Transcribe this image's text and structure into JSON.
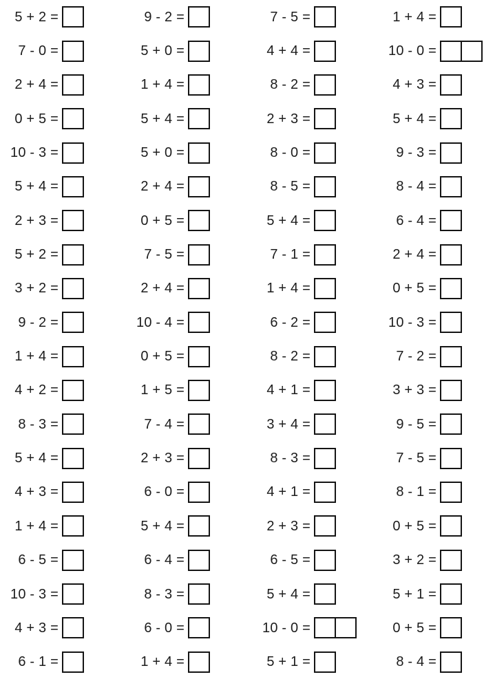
{
  "page": {
    "background_color": "#ffffff",
    "text_color": "#1c1c1c",
    "box_border_color": "#141414",
    "description": "Printable math worksheet: addition and subtraction facts with empty answer boxes",
    "columns": 4,
    "rows_count": 20,
    "answer_boxes_empty": true
  },
  "worksheet": {
    "rows": [
      [
        {
          "label": "5 + 2 =",
          "boxes": 1
        },
        {
          "label": "9 - 2 =",
          "boxes": 1
        },
        {
          "label": "7 - 5 =",
          "boxes": 1
        },
        {
          "label": "1 + 4 =",
          "boxes": 1
        }
      ],
      [
        {
          "label": "7 - 0 =",
          "boxes": 1
        },
        {
          "label": "5 + 0 =",
          "boxes": 1
        },
        {
          "label": "4 + 4 =",
          "boxes": 1
        },
        {
          "label": "10 - 0 =",
          "boxes": 2
        }
      ],
      [
        {
          "label": "2 + 4 =",
          "boxes": 1
        },
        {
          "label": "1 + 4 =",
          "boxes": 1
        },
        {
          "label": "8 - 2 =",
          "boxes": 1
        },
        {
          "label": "4 + 3 =",
          "boxes": 1
        }
      ],
      [
        {
          "label": "0 + 5 =",
          "boxes": 1
        },
        {
          "label": "5 + 4 =",
          "boxes": 1
        },
        {
          "label": "2 + 3 =",
          "boxes": 1
        },
        {
          "label": "5 + 4 =",
          "boxes": 1
        }
      ],
      [
        {
          "label": "10 - 3 =",
          "boxes": 1
        },
        {
          "label": "5 + 0 =",
          "boxes": 1
        },
        {
          "label": "8 - 0 =",
          "boxes": 1
        },
        {
          "label": "9 - 3 =",
          "boxes": 1
        }
      ],
      [
        {
          "label": "5 + 4 =",
          "boxes": 1
        },
        {
          "label": "2 + 4 =",
          "boxes": 1
        },
        {
          "label": "8 - 5 =",
          "boxes": 1
        },
        {
          "label": "8 - 4 =",
          "boxes": 1
        }
      ],
      [
        {
          "label": "2 + 3 =",
          "boxes": 1
        },
        {
          "label": "0 + 5 =",
          "boxes": 1
        },
        {
          "label": "5 + 4 =",
          "boxes": 1
        },
        {
          "label": "6 - 4 =",
          "boxes": 1
        }
      ],
      [
        {
          "label": "5 + 2 =",
          "boxes": 1
        },
        {
          "label": "7 - 5 =",
          "boxes": 1
        },
        {
          "label": "7 - 1 =",
          "boxes": 1
        },
        {
          "label": "2 + 4 =",
          "boxes": 1
        }
      ],
      [
        {
          "label": "3 + 2 =",
          "boxes": 1
        },
        {
          "label": "2 + 4 =",
          "boxes": 1
        },
        {
          "label": "1 + 4 =",
          "boxes": 1
        },
        {
          "label": "0 + 5 =",
          "boxes": 1
        }
      ],
      [
        {
          "label": "9 - 2 =",
          "boxes": 1
        },
        {
          "label": "10 - 4 =",
          "boxes": 1
        },
        {
          "label": "6 - 2 =",
          "boxes": 1
        },
        {
          "label": "10 - 3 =",
          "boxes": 1
        }
      ],
      [
        {
          "label": "1 + 4 =",
          "boxes": 1
        },
        {
          "label": "0 + 5 =",
          "boxes": 1
        },
        {
          "label": "8 - 2 =",
          "boxes": 1
        },
        {
          "label": "7 - 2 =",
          "boxes": 1
        }
      ],
      [
        {
          "label": "4 + 2 =",
          "boxes": 1
        },
        {
          "label": "1 + 5 =",
          "boxes": 1
        },
        {
          "label": "4 + 1 =",
          "boxes": 1
        },
        {
          "label": "3 + 3 =",
          "boxes": 1
        }
      ],
      [
        {
          "label": "8 - 3 =",
          "boxes": 1
        },
        {
          "label": "7 - 4 =",
          "boxes": 1
        },
        {
          "label": "3 + 4 =",
          "boxes": 1
        },
        {
          "label": "9 - 5 =",
          "boxes": 1
        }
      ],
      [
        {
          "label": "5 + 4 =",
          "boxes": 1
        },
        {
          "label": "2 + 3 =",
          "boxes": 1
        },
        {
          "label": "8 - 3 =",
          "boxes": 1
        },
        {
          "label": "7 - 5 =",
          "boxes": 1
        }
      ],
      [
        {
          "label": "4 + 3 =",
          "boxes": 1
        },
        {
          "label": "6 - 0 =",
          "boxes": 1
        },
        {
          "label": "4 + 1 =",
          "boxes": 1
        },
        {
          "label": "8 - 1 =",
          "boxes": 1
        }
      ],
      [
        {
          "label": "1 + 4 =",
          "boxes": 1
        },
        {
          "label": "5 + 4 =",
          "boxes": 1
        },
        {
          "label": "2 + 3 =",
          "boxes": 1
        },
        {
          "label": "0 + 5 =",
          "boxes": 1
        }
      ],
      [
        {
          "label": "6 - 5 =",
          "boxes": 1
        },
        {
          "label": "6 - 4 =",
          "boxes": 1
        },
        {
          "label": "6 - 5 =",
          "boxes": 1
        },
        {
          "label": "3 + 2 =",
          "boxes": 1
        }
      ],
      [
        {
          "label": "10 - 3 =",
          "boxes": 1
        },
        {
          "label": "8 - 3 =",
          "boxes": 1
        },
        {
          "label": "5 + 4 =",
          "boxes": 1
        },
        {
          "label": "5 + 1 =",
          "boxes": 1
        }
      ],
      [
        {
          "label": "4 + 3 =",
          "boxes": 1
        },
        {
          "label": "6 - 0 =",
          "boxes": 1
        },
        {
          "label": "10 - 0 =",
          "boxes": 2
        },
        {
          "label": "0 + 5 =",
          "boxes": 1
        }
      ],
      [
        {
          "label": "6 - 1 =",
          "boxes": 1
        },
        {
          "label": "1 + 4 =",
          "boxes": 1
        },
        {
          "label": "5 + 1 =",
          "boxes": 1
        },
        {
          "label": "8 - 4 =",
          "boxes": 1
        }
      ]
    ]
  }
}
